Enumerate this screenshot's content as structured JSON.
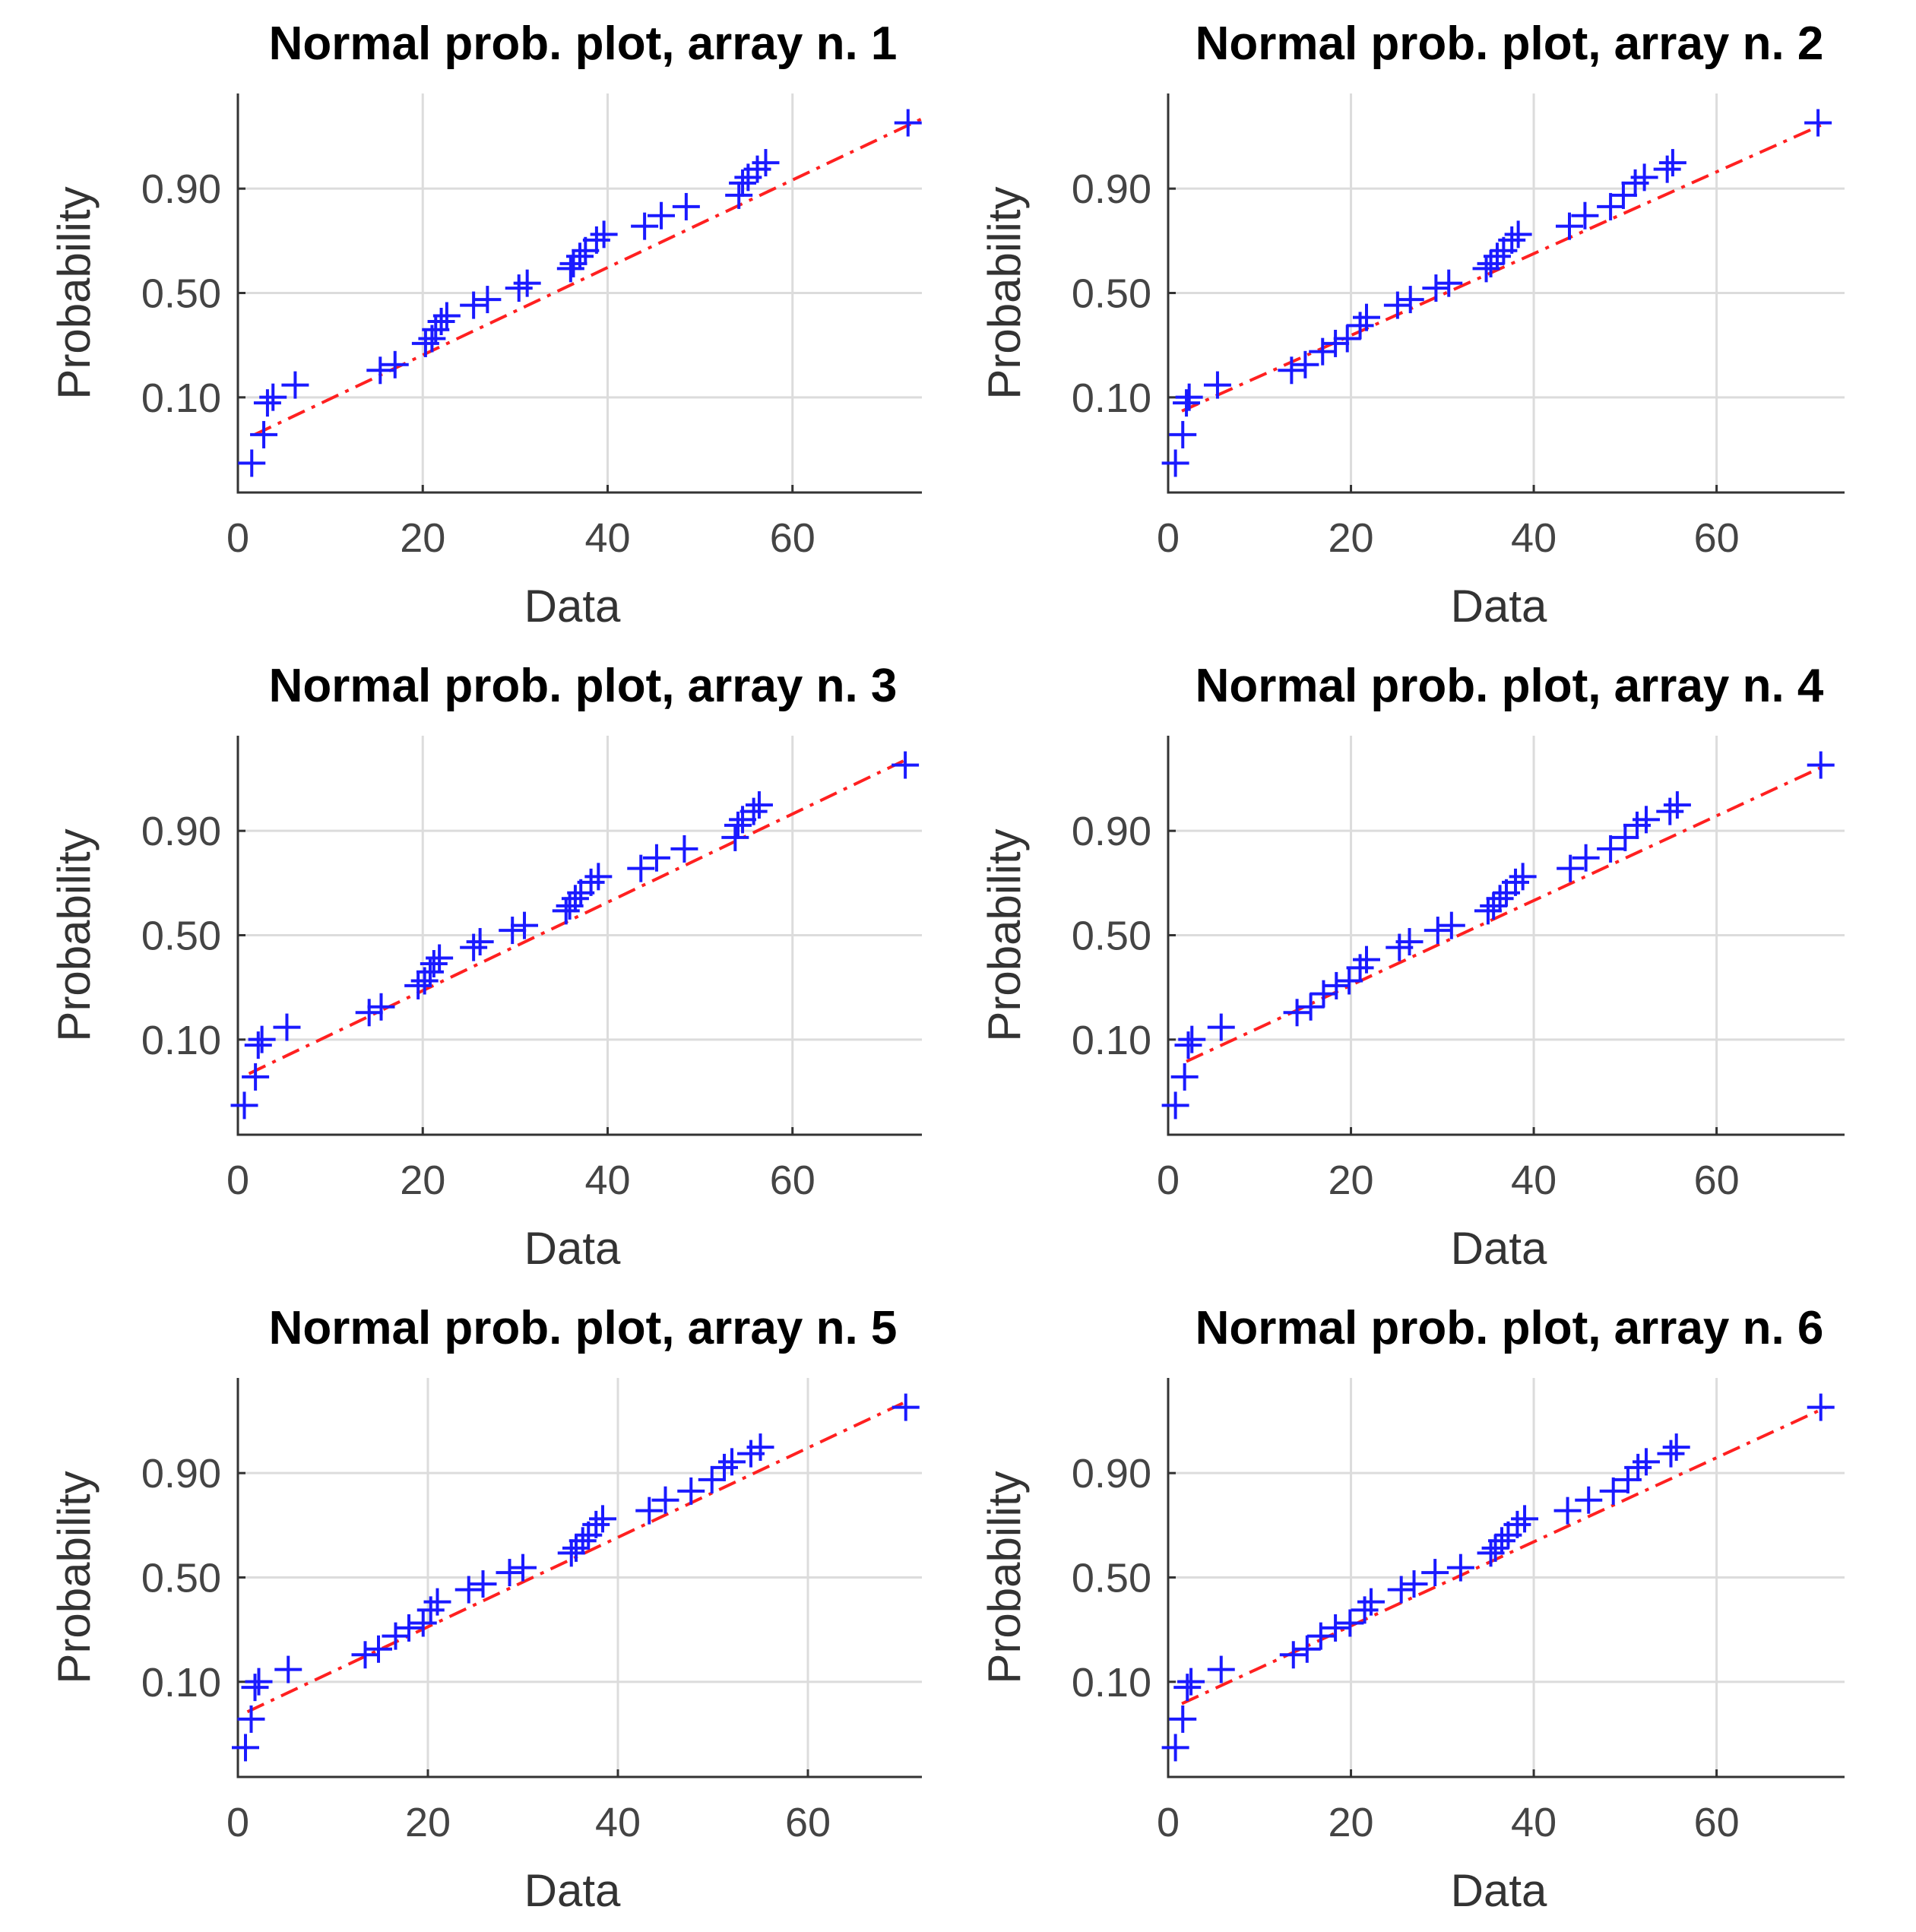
{
  "chart_data": [
    {
      "type": "scatter",
      "title": "Normal prob. plot, array n. 1",
      "xlabel": "Data",
      "ylabel": "Probability",
      "xticks": [
        0,
        20,
        40,
        60
      ],
      "yticks": [
        "0.10",
        "0.50",
        "0.90"
      ],
      "xlim": [
        0,
        74
      ],
      "ylim": [
        -2.45,
        2.45
      ],
      "grid": true,
      "fit_line": {
        "x": [
          1.8,
          74
        ],
        "z": [
          -1.74,
          2.14
        ],
        "color": "#ff2020",
        "style": "dash-dot"
      },
      "points": {
        "x": [
          1.5,
          2.8,
          3.2,
          3.8,
          6.2,
          15.4,
          17.0,
          20.3,
          21.0,
          21.4,
          22.0,
          22.6,
          25.5,
          27.0,
          30.4,
          31.3,
          36.0,
          36.3,
          37.0,
          37.6,
          38.8,
          39.6,
          44.0,
          45.8,
          48.5,
          54.2,
          54.6,
          55.2,
          56.2,
          57.1,
          72.5
        ],
        "z": [
          -2.09,
          -1.74,
          -1.35,
          -1.28,
          -1.13,
          -0.95,
          -0.88,
          -0.62,
          -0.56,
          -0.45,
          -0.35,
          -0.28,
          -0.15,
          -0.08,
          0.06,
          0.12,
          0.3,
          0.36,
          0.45,
          0.52,
          0.65,
          0.72,
          0.82,
          0.95,
          1.06,
          1.2,
          1.35,
          1.42,
          1.52,
          1.6,
          2.09
        ]
      }
    },
    {
      "type": "scatter",
      "title": "Normal prob. plot, array n. 2",
      "xlabel": "Data",
      "ylabel": "Probability",
      "xticks": [
        0,
        20,
        40,
        60
      ],
      "yticks": [
        "0.10",
        "0.50",
        "0.90"
      ],
      "xlim": [
        0,
        74
      ],
      "ylim": [
        -2.45,
        2.45
      ],
      "grid": true,
      "fit_line": {
        "x": [
          1.5,
          72
        ],
        "z": [
          -1.45,
          2.09
        ],
        "color": "#ff2020",
        "style": "dash-dot"
      },
      "points": {
        "x": [
          0.8,
          1.6,
          2.0,
          2.3,
          5.4,
          13.5,
          15.0,
          16.9,
          18.3,
          19.6,
          21.0,
          21.7,
          25.1,
          26.5,
          29.3,
          30.7,
          34.8,
          35.3,
          36.0,
          36.7,
          37.6,
          38.3,
          43.9,
          45.6,
          48.4,
          49.8,
          51.1,
          52.1,
          54.6,
          55.2,
          71.1
        ],
        "z": [
          -2.09,
          -1.74,
          -1.35,
          -1.28,
          -1.13,
          -0.95,
          -0.88,
          -0.72,
          -0.62,
          -0.56,
          -0.4,
          -0.3,
          -0.15,
          -0.08,
          0.06,
          0.12,
          0.3,
          0.36,
          0.45,
          0.52,
          0.65,
          0.72,
          0.82,
          0.95,
          1.06,
          1.2,
          1.35,
          1.42,
          1.52,
          1.6,
          2.09
        ]
      }
    },
    {
      "type": "scatter",
      "title": "Normal prob. plot, array n. 3",
      "xlabel": "Data",
      "ylabel": "Probability",
      "xticks": [
        0,
        20,
        40,
        60
      ],
      "yticks": [
        "0.10",
        "0.50",
        "0.90"
      ],
      "xlim": [
        0,
        74
      ],
      "ylim": [
        -2.45,
        2.45
      ],
      "grid": true,
      "fit_line": {
        "x": [
          1.2,
          72
        ],
        "z": [
          -1.7,
          2.14
        ],
        "color": "#ff2020",
        "style": "dash-dot"
      },
      "points": {
        "x": [
          0.7,
          1.9,
          2.2,
          2.6,
          5.3,
          14.2,
          15.5,
          19.5,
          20.2,
          20.8,
          21.2,
          21.8,
          25.5,
          26.2,
          29.7,
          31.0,
          35.5,
          35.9,
          36.5,
          37.1,
          38.2,
          39.0,
          43.6,
          45.3,
          48.3,
          53.8,
          54.1,
          54.6,
          55.8,
          56.4,
          72.2
        ],
        "z": [
          -2.09,
          -1.74,
          -1.35,
          -1.28,
          -1.13,
          -0.95,
          -0.88,
          -0.62,
          -0.56,
          -0.45,
          -0.35,
          -0.28,
          -0.15,
          -0.08,
          0.06,
          0.12,
          0.3,
          0.36,
          0.45,
          0.52,
          0.65,
          0.72,
          0.82,
          0.95,
          1.06,
          1.2,
          1.35,
          1.42,
          1.52,
          1.6,
          2.09
        ]
      }
    },
    {
      "type": "scatter",
      "title": "Normal prob. plot, array n. 4",
      "xlabel": "Data",
      "ylabel": "Probability",
      "xticks": [
        0,
        20,
        40,
        60
      ],
      "yticks": [
        "0.10",
        "0.50",
        "0.90"
      ],
      "xlim": [
        0,
        74
      ],
      "ylim": [
        -2.45,
        2.45
      ],
      "grid": true,
      "fit_line": {
        "x": [
          2.0,
          72
        ],
        "z": [
          -1.55,
          2.09
        ],
        "color": "#ff2020",
        "style": "dash-dot"
      },
      "points": {
        "x": [
          0.8,
          1.8,
          2.2,
          2.6,
          5.8,
          14.1,
          15.6,
          17.0,
          18.4,
          19.8,
          21.0,
          21.7,
          25.3,
          26.4,
          29.5,
          31.0,
          35.0,
          35.6,
          36.3,
          37.0,
          38.0,
          38.8,
          44.0,
          45.7,
          48.4,
          50.0,
          51.3,
          52.3,
          54.9,
          55.7,
          71.4
        ],
        "z": [
          -2.09,
          -1.74,
          -1.35,
          -1.28,
          -1.13,
          -0.95,
          -0.88,
          -0.72,
          -0.62,
          -0.56,
          -0.4,
          -0.3,
          -0.15,
          -0.08,
          0.06,
          0.12,
          0.3,
          0.36,
          0.45,
          0.52,
          0.65,
          0.72,
          0.82,
          0.95,
          1.06,
          1.2,
          1.35,
          1.42,
          1.52,
          1.6,
          2.09
        ]
      }
    },
    {
      "type": "scatter",
      "title": "Normal prob. plot, array n. 5",
      "xlabel": "Data",
      "ylabel": "Probability",
      "xticks": [
        0,
        20,
        40,
        60
      ],
      "yticks": [
        "0.10",
        "0.50",
        "0.90"
      ],
      "xlim": [
        0,
        72
      ],
      "ylim": [
        -2.45,
        2.45
      ],
      "grid": true,
      "fit_line": {
        "x": [
          1.0,
          70
        ],
        "z": [
          -1.65,
          2.14
        ],
        "color": "#ff2020",
        "style": "dash-dot"
      },
      "points": {
        "x": [
          0.8,
          1.4,
          1.8,
          2.2,
          5.3,
          13.4,
          14.8,
          16.6,
          18.0,
          19.5,
          20.3,
          21.0,
          24.3,
          25.8,
          28.6,
          30.0,
          35.1,
          35.6,
          36.3,
          36.9,
          37.7,
          38.4,
          43.3,
          45.0,
          47.7,
          49.9,
          51.2,
          52.0,
          54.0,
          55.0,
          70.3
        ],
        "z": [
          -2.09,
          -1.74,
          -1.35,
          -1.28,
          -1.13,
          -0.95,
          -0.88,
          -0.72,
          -0.62,
          -0.56,
          -0.4,
          -0.3,
          -0.15,
          -0.08,
          0.06,
          0.12,
          0.3,
          0.36,
          0.45,
          0.52,
          0.65,
          0.72,
          0.82,
          0.95,
          1.06,
          1.2,
          1.35,
          1.42,
          1.52,
          1.6,
          2.09
        ]
      }
    },
    {
      "type": "scatter",
      "title": "Normal prob. plot, array n. 6",
      "xlabel": "Data",
      "ylabel": "Probability",
      "xticks": [
        0,
        20,
        40,
        60
      ],
      "yticks": [
        "0.10",
        "0.50",
        "0.90"
      ],
      "xlim": [
        0,
        74
      ],
      "ylim": [
        -2.45,
        2.45
      ],
      "grid": true,
      "fit_line": {
        "x": [
          1.5,
          72
        ],
        "z": [
          -1.55,
          2.09
        ],
        "color": "#ff2020",
        "style": "dash-dot"
      },
      "points": {
        "x": [
          0.8,
          1.6,
          2.1,
          2.5,
          5.8,
          13.7,
          15.2,
          16.7,
          18.3,
          19.9,
          21.5,
          22.2,
          25.5,
          26.9,
          29.2,
          32.0,
          35.3,
          35.8,
          36.5,
          37.2,
          38.2,
          39.0,
          43.7,
          46.0,
          48.7,
          50.3,
          51.4,
          52.3,
          55.0,
          55.6,
          71.4
        ],
        "z": [
          -2.09,
          -1.74,
          -1.35,
          -1.28,
          -1.13,
          -0.95,
          -0.88,
          -0.72,
          -0.62,
          -0.56,
          -0.4,
          -0.3,
          -0.15,
          -0.08,
          0.06,
          0.12,
          0.3,
          0.36,
          0.45,
          0.52,
          0.65,
          0.72,
          0.82,
          0.95,
          1.06,
          1.2,
          1.35,
          1.42,
          1.52,
          1.6,
          2.09
        ]
      }
    }
  ]
}
